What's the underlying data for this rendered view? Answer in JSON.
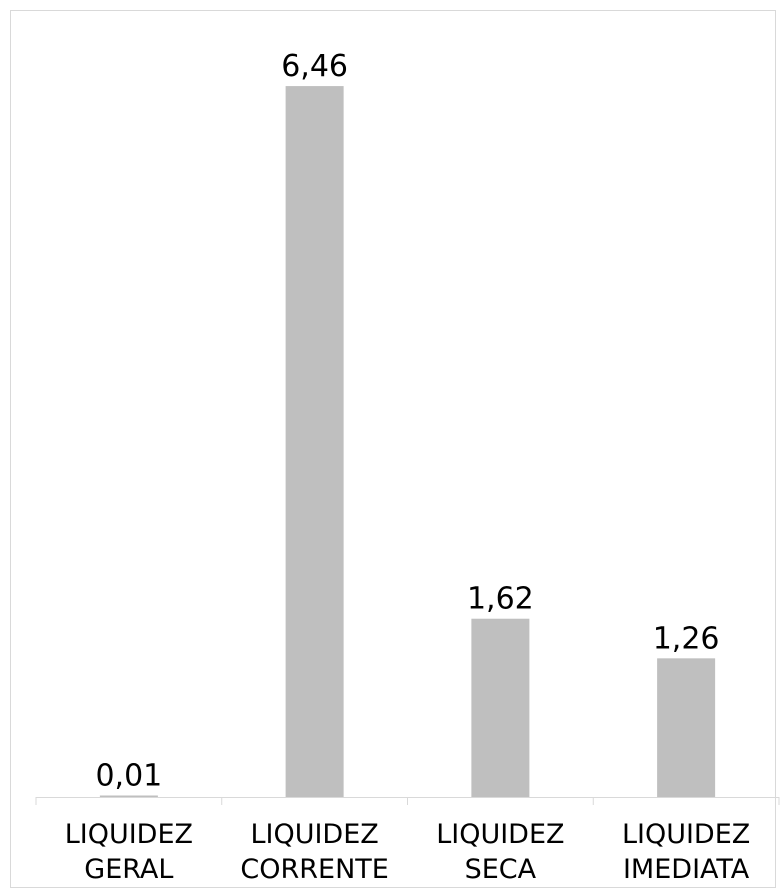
{
  "chart_data": {
    "type": "bar",
    "title": "",
    "xlabel": "",
    "ylabel": "",
    "categories": [
      [
        "LIQUIDEZ",
        "GERAL"
      ],
      [
        "LIQUIDEZ",
        "CORRENTE"
      ],
      [
        "LIQUIDEZ",
        "SECA"
      ],
      [
        "LIQUIDEZ",
        "IMEDIATA"
      ]
    ],
    "values": [
      0.01,
      6.46,
      1.62,
      1.26
    ],
    "value_labels": [
      "0,01",
      "6,46",
      "1,62",
      "1,26"
    ],
    "ylim": [
      0,
      7
    ],
    "grid": false,
    "legend": "none",
    "bar_color": "#bfbfbf",
    "axis_color": "#d9d9d9"
  }
}
